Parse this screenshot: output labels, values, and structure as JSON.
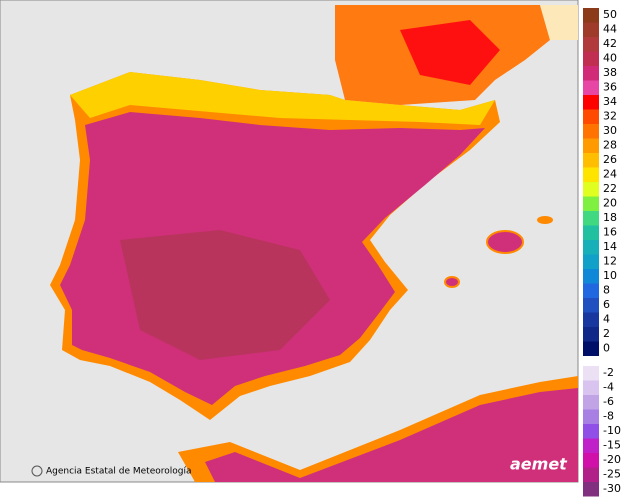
{
  "legend": [
    {
      "value": 50,
      "color": "#8b3a1a"
    },
    {
      "value": 44,
      "color": "#9e3b2b"
    },
    {
      "value": 42,
      "color": "#b03a3c"
    },
    {
      "value": 40,
      "color": "#c02f52"
    },
    {
      "value": 38,
      "color": "#d02a78"
    },
    {
      "value": 36,
      "color": "#e846a4"
    },
    {
      "value": 34,
      "color": "#ff0000"
    },
    {
      "value": 32,
      "color": "#ff4a00"
    },
    {
      "value": 30,
      "color": "#ff7300"
    },
    {
      "value": 28,
      "color": "#ff9a00"
    },
    {
      "value": 26,
      "color": "#ffbf00"
    },
    {
      "value": 24,
      "color": "#ffe400"
    },
    {
      "value": 22,
      "color": "#e0ff20"
    },
    {
      "value": 20,
      "color": "#80f040"
    },
    {
      "value": 18,
      "color": "#40d880"
    },
    {
      "value": 16,
      "color": "#20c0a0"
    },
    {
      "value": 14,
      "color": "#18b0b8"
    },
    {
      "value": 12,
      "color": "#10a0c8"
    },
    {
      "value": 10,
      "color": "#1088d8"
    },
    {
      "value": 8,
      "color": "#2068e0"
    },
    {
      "value": 6,
      "color": "#2050c0"
    },
    {
      "value": 4,
      "color": "#1838a0"
    },
    {
      "value": 2,
      "color": "#102888"
    },
    {
      "value": 0,
      "color": "#001068"
    },
    {
      "value": -2,
      "color": "#ece0f4"
    },
    {
      "value": -4,
      "color": "#d8c4ee"
    },
    {
      "value": -6,
      "color": "#c0a4e6"
    },
    {
      "value": -8,
      "color": "#a880e4"
    },
    {
      "value": -10,
      "color": "#9050e8"
    },
    {
      "value": -15,
      "color": "#c020c8"
    },
    {
      "value": -20,
      "color": "#d010a8"
    },
    {
      "value": -25,
      "color": "#b02088"
    },
    {
      "value": -30,
      "color": "#80307f"
    }
  ],
  "credit": "Agencia Estatal de Meteorología",
  "logo": "aemet"
}
